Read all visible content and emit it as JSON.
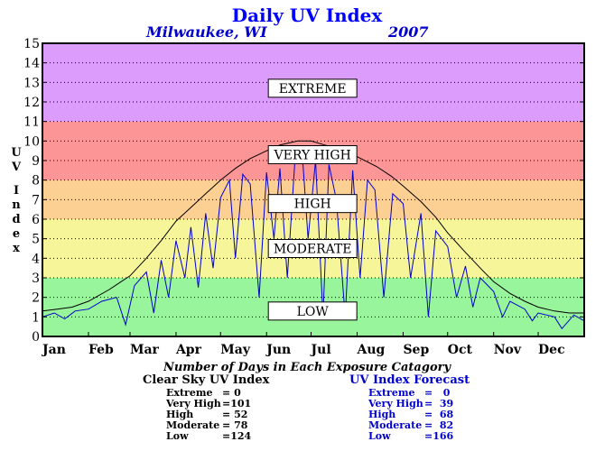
{
  "title": "Daily UV Index",
  "subtitle_location": "Milwaukee, WI",
  "subtitle_year": "2007",
  "ylabel_letters": [
    "U",
    "V",
    "I",
    "n",
    "d",
    "e",
    "x"
  ],
  "caption": "Number of Days in Each Exposure Catagory",
  "tables": {
    "clear_sky": {
      "title": "Clear Sky UV Index",
      "rows": [
        {
          "label": "Extreme",
          "eq": "=",
          "value": "0"
        },
        {
          "label": "Very High",
          "eq": "=",
          "value": "101"
        },
        {
          "label": "High",
          "eq": "=",
          "value": "52"
        },
        {
          "label": "Moderate",
          "eq": "=",
          "value": "78"
        },
        {
          "label": "Low",
          "eq": "=",
          "value": "124"
        }
      ]
    },
    "forecast": {
      "title": "UV Index Forecast",
      "rows": [
        {
          "label": "Extreme",
          "eq": "=",
          "value": "0"
        },
        {
          "label": "Very High",
          "eq": "=",
          "value": "39"
        },
        {
          "label": "High",
          "eq": "=",
          "value": "68"
        },
        {
          "label": "Moderate",
          "eq": "=",
          "value": "82"
        },
        {
          "label": "Low",
          "eq": "=",
          "value": "166"
        }
      ]
    }
  },
  "chart_data": {
    "type": "line",
    "title": "Daily UV Index",
    "xlabel": "",
    "ylabel": "UV Index",
    "ylim": [
      0,
      15
    ],
    "yticks": [
      "0",
      "1",
      "2",
      "3",
      "4",
      "5",
      "6",
      "7",
      "8",
      "9",
      "10",
      "11",
      "12",
      "13",
      "14",
      "15"
    ],
    "xlim": [
      0,
      365
    ],
    "months": [
      "Jan",
      "Feb",
      "Mar",
      "Apr",
      "May",
      "Jun",
      "Jul",
      "Aug",
      "Sep",
      "Oct",
      "Nov",
      "Dec"
    ],
    "month_start_days": [
      0,
      31,
      59,
      90,
      120,
      151,
      181,
      212,
      243,
      273,
      304,
      334
    ],
    "grid": "dotted horizontal",
    "bands": [
      {
        "label": "LOW",
        "from": 0,
        "to": 3,
        "color": "#99f59c",
        "label_y": 1.3
      },
      {
        "label": "MODERATE",
        "from": 3,
        "to": 6,
        "color": "#f6f59a",
        "label_y": 4.5
      },
      {
        "label": "HIGH",
        "from": 6,
        "to": 8,
        "color": "#fccf92",
        "label_y": 6.8
      },
      {
        "label": "VERY HIGH",
        "from": 8,
        "to": 11,
        "color": "#fc9696",
        "label_y": 9.3
      },
      {
        "label": "EXTREME",
        "from": 11,
        "to": 15,
        "color": "#dc9cfc",
        "label_y": 12.7
      }
    ],
    "series": [
      {
        "name": "Clear Sky UV Index",
        "color": "#000000",
        "points": [
          [
            0,
            1.3
          ],
          [
            10,
            1.4
          ],
          [
            20,
            1.5
          ],
          [
            31,
            1.8
          ],
          [
            45,
            2.4
          ],
          [
            59,
            3.1
          ],
          [
            70,
            4.0
          ],
          [
            80,
            4.9
          ],
          [
            90,
            5.9
          ],
          [
            100,
            6.6
          ],
          [
            110,
            7.3
          ],
          [
            120,
            8.0
          ],
          [
            130,
            8.6
          ],
          [
            140,
            9.1
          ],
          [
            151,
            9.5
          ],
          [
            160,
            9.8
          ],
          [
            172,
            10.0
          ],
          [
            181,
            10.0
          ],
          [
            190,
            9.8
          ],
          [
            200,
            9.6
          ],
          [
            212,
            9.2
          ],
          [
            225,
            8.7
          ],
          [
            235,
            8.2
          ],
          [
            243,
            7.7
          ],
          [
            255,
            6.9
          ],
          [
            265,
            6.1
          ],
          [
            273,
            5.3
          ],
          [
            285,
            4.3
          ],
          [
            295,
            3.5
          ],
          [
            304,
            2.8
          ],
          [
            315,
            2.2
          ],
          [
            325,
            1.8
          ],
          [
            334,
            1.5
          ],
          [
            345,
            1.3
          ],
          [
            355,
            1.2
          ],
          [
            365,
            1.2
          ]
        ]
      },
      {
        "name": "UV Index Forecast",
        "color": "#0000cc",
        "points": [
          [
            0,
            1.0
          ],
          [
            8,
            1.2
          ],
          [
            15,
            0.9
          ],
          [
            22,
            1.3
          ],
          [
            31,
            1.4
          ],
          [
            40,
            1.8
          ],
          [
            50,
            2.0
          ],
          [
            56,
            0.6
          ],
          [
            62,
            2.6
          ],
          [
            70,
            3.3
          ],
          [
            75,
            1.2
          ],
          [
            80,
            3.9
          ],
          [
            85,
            2.0
          ],
          [
            90,
            4.9
          ],
          [
            96,
            3.0
          ],
          [
            100,
            5.6
          ],
          [
            105,
            2.5
          ],
          [
            110,
            6.3
          ],
          [
            115,
            3.5
          ],
          [
            120,
            7.1
          ],
          [
            126,
            8.0
          ],
          [
            130,
            4.0
          ],
          [
            135,
            8.3
          ],
          [
            140,
            7.8
          ],
          [
            146,
            2.0
          ],
          [
            151,
            8.4
          ],
          [
            156,
            5.0
          ],
          [
            160,
            8.6
          ],
          [
            165,
            3.0
          ],
          [
            170,
            8.9
          ],
          [
            175,
            9.4
          ],
          [
            179,
            5.0
          ],
          [
            184,
            9.0
          ],
          [
            189,
            1.0
          ],
          [
            193,
            8.8
          ],
          [
            198,
            7.0
          ],
          [
            204,
            1.0
          ],
          [
            209,
            8.5
          ],
          [
            214,
            3.0
          ],
          [
            219,
            8.0
          ],
          [
            224,
            7.5
          ],
          [
            230,
            2.0
          ],
          [
            236,
            7.3
          ],
          [
            243,
            6.8
          ],
          [
            248,
            3.0
          ],
          [
            255,
            6.3
          ],
          [
            260,
            1.0
          ],
          [
            265,
            5.4
          ],
          [
            273,
            4.6
          ],
          [
            279,
            2.0
          ],
          [
            285,
            3.6
          ],
          [
            290,
            1.5
          ],
          [
            295,
            3.0
          ],
          [
            304,
            2.3
          ],
          [
            310,
            1.0
          ],
          [
            315,
            1.8
          ],
          [
            325,
            1.4
          ],
          [
            330,
            0.8
          ],
          [
            334,
            1.2
          ],
          [
            345,
            1.0
          ],
          [
            350,
            0.4
          ],
          [
            358,
            1.1
          ],
          [
            365,
            0.8
          ]
        ]
      }
    ]
  }
}
